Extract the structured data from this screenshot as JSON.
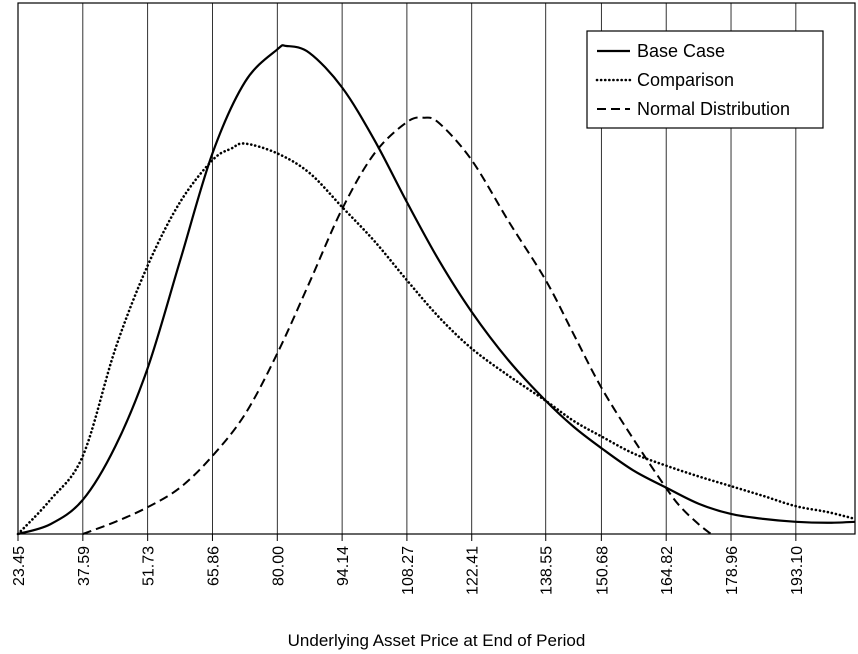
{
  "chart_data": {
    "type": "line",
    "xlabel": "Underlying Asset Price at End of Period",
    "ylabel": "",
    "title": "",
    "x_ticks": [
      "23.45",
      "37.59",
      "51.73",
      "65.86",
      "80.00",
      "94.14",
      "108.27",
      "122.41",
      "138.55",
      "150.68",
      "164.82",
      "178.96",
      "193.10"
    ],
    "x_tick_values": [
      23.45,
      37.59,
      51.73,
      65.86,
      80.0,
      94.14,
      108.27,
      122.41,
      138.55,
      150.68,
      164.82,
      178.96,
      193.1
    ],
    "xlim": [
      23.45,
      206.0
    ],
    "ylim": [
      0,
      100
    ],
    "grid": "vertical",
    "legend": "top-right",
    "series": [
      {
        "name": "Base Case",
        "style": "solid",
        "x": [
          23.45,
          30.5,
          37.59,
          44.7,
          51.73,
          58.8,
          65.86,
          73.0,
          80.0,
          82.0,
          87.0,
          94.14,
          101.2,
          108.27,
          115.3,
          122.41,
          130.5,
          138.55,
          144.6,
          150.68,
          157.7,
          164.82,
          171.9,
          178.96,
          186.0,
          193.1,
          200.0,
          206.0
        ],
        "y": [
          0,
          2,
          7,
          18,
          34,
          56,
          78,
          92.7,
          99.3,
          100,
          98.6,
          91.5,
          80.7,
          68,
          56,
          45.5,
          35.5,
          27.3,
          22,
          17.6,
          13,
          9.5,
          6.2,
          4.1,
          3.1,
          2.5,
          2.3,
          2.5
        ]
      },
      {
        "name": "Comparison",
        "style": "dotted",
        "x": [
          23.45,
          30.5,
          37.59,
          44.7,
          51.73,
          58.8,
          65.86,
          70.0,
          73.0,
          80.0,
          87.0,
          94.14,
          101.2,
          108.27,
          115.3,
          122.41,
          130.5,
          138.55,
          144.6,
          150.68,
          157.7,
          164.82,
          171.9,
          178.96,
          186.0,
          193.1,
          200.0,
          206.0
        ],
        "y": [
          0,
          7,
          16,
          38,
          55,
          68,
          76.6,
          79,
          80,
          78,
          74,
          67,
          60,
          52,
          44.4,
          38,
          32.4,
          27.3,
          23.2,
          20,
          16.5,
          14,
          11.8,
          9.8,
          7.8,
          5.7,
          4.5,
          3.1
        ]
      },
      {
        "name": "Normal Distribution",
        "style": "dashed",
        "x": [
          37.59,
          44.7,
          51.73,
          58.8,
          65.86,
          73.0,
          80.0,
          87.0,
          94.14,
          101.2,
          108.27,
          112.0,
          115.3,
          122.41,
          130.5,
          138.55,
          144.6,
          150.68,
          157.7,
          164.82,
          168.0,
          171.9,
          174.6
        ],
        "y": [
          0,
          2.5,
          5.5,
          9.5,
          16,
          24.6,
          37,
          51.5,
          66.6,
          78,
          84.4,
          85.3,
          84.2,
          76.6,
          64,
          52,
          41,
          30,
          19.4,
          9.4,
          5.5,
          2,
          0
        ]
      }
    ]
  }
}
